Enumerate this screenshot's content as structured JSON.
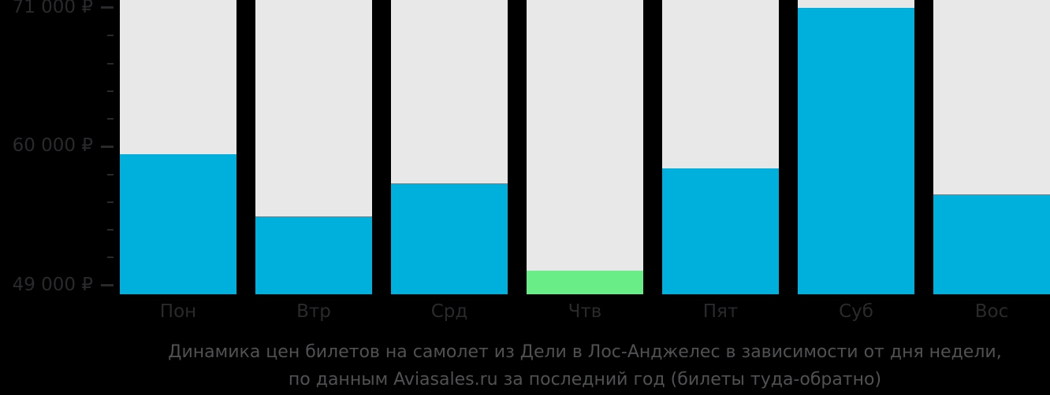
{
  "chart_data": {
    "type": "bar",
    "categories": [
      "Пон",
      "Втр",
      "Срд",
      "Чтв",
      "Пят",
      "Суб",
      "Вос"
    ],
    "values": [
      59400,
      54500,
      57100,
      50200,
      58300,
      71000,
      56200
    ],
    "unit": "₽",
    "highlight_index": 3,
    "xlabel": "",
    "ylabel": "",
    "ylim": [
      48300,
      71620
    ],
    "y_axis": {
      "major_ticks": [
        {
          "value": 71000,
          "label": "71 000 ₽"
        },
        {
          "value": 60000,
          "label": "60 000 ₽"
        },
        {
          "value": 49000,
          "label": "49 000 ₽"
        }
      ],
      "minor_tick_step": 2200
    },
    "grid": false,
    "legend": false,
    "colors": {
      "background": "#000000",
      "track": "#e8e8e8",
      "bar": "#00b0dc",
      "bar_min": "#69ed86",
      "axis_text": "#282a2c",
      "caption_text": "#4f5153"
    },
    "caption": {
      "line1": "Динамика цен билетов на самолет из Дели в Лос-Анджелес в зависимости от дня недели,",
      "line2": "по данным Aviasales.ru за последний год (билеты туда-обратно)"
    }
  }
}
